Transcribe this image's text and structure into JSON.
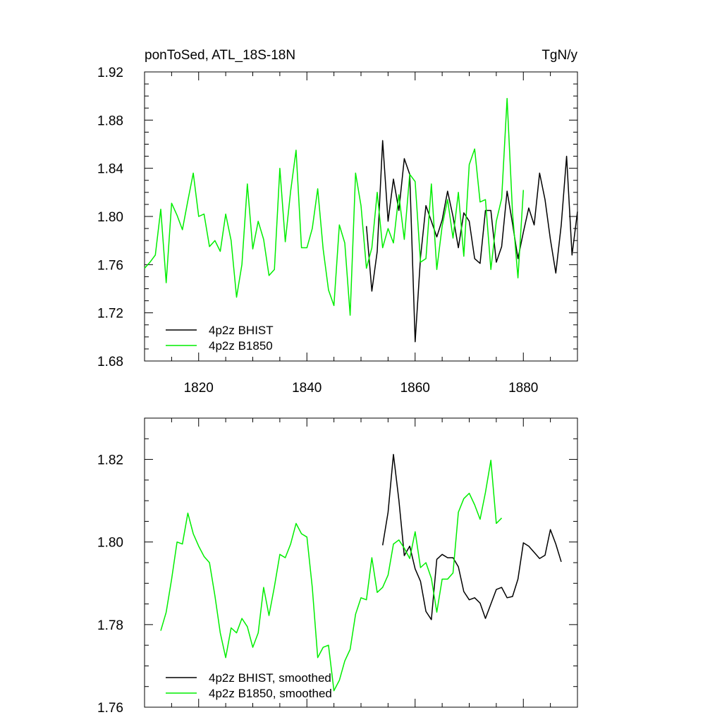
{
  "chart_data": [
    {
      "type": "line",
      "title": "ponToSed, ATL_18S-18N",
      "units": "TgN/y",
      "xlim": [
        1810,
        1890
      ],
      "ylim": [
        1.68,
        1.92
      ],
      "yticks": [
        "1.68",
        "1.72",
        "1.76",
        "1.80",
        "1.84",
        "1.88",
        "1.92"
      ],
      "xticks": [
        "1820",
        "1840",
        "1860",
        "1880"
      ],
      "legend_position": "bottom-left",
      "series": [
        {
          "name": "4p2z BHIST",
          "color": "#000000",
          "x0": 1851,
          "values": [
            1.792,
            1.738,
            1.771,
            1.863,
            1.796,
            1.831,
            1.805,
            1.848,
            1.835,
            1.696,
            1.766,
            1.809,
            1.796,
            1.783,
            1.797,
            1.821,
            1.8,
            1.774,
            1.803,
            1.796,
            1.765,
            1.761,
            1.805,
            1.805,
            1.762,
            1.775,
            1.821,
            1.794,
            1.765,
            1.787,
            1.807,
            1.793,
            1.836,
            1.814,
            1.781,
            1.753,
            1.793,
            1.85,
            1.768,
            1.804
          ]
        },
        {
          "name": "4p2z B1850",
          "color": "#00ee00",
          "x0": 1810,
          "values": [
            1.757,
            1.762,
            1.768,
            1.806,
            1.745,
            1.811,
            1.801,
            1.789,
            1.813,
            1.836,
            1.8,
            1.802,
            1.775,
            1.78,
            1.771,
            1.802,
            1.78,
            1.733,
            1.76,
            1.827,
            1.773,
            1.796,
            1.781,
            1.751,
            1.756,
            1.84,
            1.779,
            1.821,
            1.855,
            1.774,
            1.774,
            1.79,
            1.823,
            1.773,
            1.739,
            1.726,
            1.793,
            1.778,
            1.718,
            1.836,
            1.809,
            1.757,
            1.774,
            1.82,
            1.774,
            1.79,
            1.778,
            1.818,
            1.781,
            1.835,
            1.829,
            1.762,
            1.765,
            1.827,
            1.756,
            1.792,
            1.814,
            1.782,
            1.82,
            1.767,
            1.843,
            1.856,
            1.812,
            1.814,
            1.756,
            1.796,
            1.815,
            1.898,
            1.803,
            1.749,
            1.822
          ]
        }
      ]
    },
    {
      "type": "line",
      "xlim": [
        1810,
        1890
      ],
      "ylim": [
        1.76,
        1.83
      ],
      "yticks": [
        "1.76",
        "1.78",
        "1.80",
        "1.82"
      ],
      "legend_position": "bottom-left",
      "series": [
        {
          "name": "4p2z BHIST, smoothed",
          "color": "#000000",
          "x0": 1854,
          "values": [
            1.7992,
            1.8072,
            1.8212,
            1.8102,
            1.7967,
            1.799,
            1.7935,
            1.7905,
            1.7832,
            1.7812,
            1.7958,
            1.797,
            1.7962,
            1.7962,
            1.794,
            1.788,
            1.786,
            1.7865,
            1.7852,
            1.7815,
            1.785,
            1.7885,
            1.789,
            1.7865,
            1.7868,
            1.791,
            1.7998,
            1.799,
            1.7975,
            1.796,
            1.7968,
            1.803,
            1.7995,
            1.7952
          ]
        },
        {
          "name": "4p2z B1850, smoothed",
          "color": "#00ee00",
          "x0": 1813,
          "values": [
            1.7785,
            1.783,
            1.791,
            1.8,
            1.7995,
            1.807,
            1.802,
            1.799,
            1.7965,
            1.795,
            1.787,
            1.778,
            1.772,
            1.7792,
            1.778,
            1.7815,
            1.7795,
            1.7745,
            1.778,
            1.789,
            1.7822,
            1.7892,
            1.797,
            1.7962,
            1.7995,
            1.8045,
            1.802,
            1.8012,
            1.789,
            1.772,
            1.7745,
            1.775,
            1.764,
            1.7665,
            1.7712,
            1.774,
            1.7825,
            1.7865,
            1.786,
            1.7962,
            1.7878,
            1.789,
            1.792,
            1.7995,
            1.8005,
            1.7985,
            1.796,
            1.8025,
            1.7938,
            1.795,
            1.7912,
            1.783,
            1.791,
            1.791,
            1.7925,
            1.8072,
            1.8105,
            1.8118,
            1.809,
            1.8055,
            1.812,
            1.8198,
            1.8045,
            1.8058
          ]
        }
      ]
    }
  ]
}
